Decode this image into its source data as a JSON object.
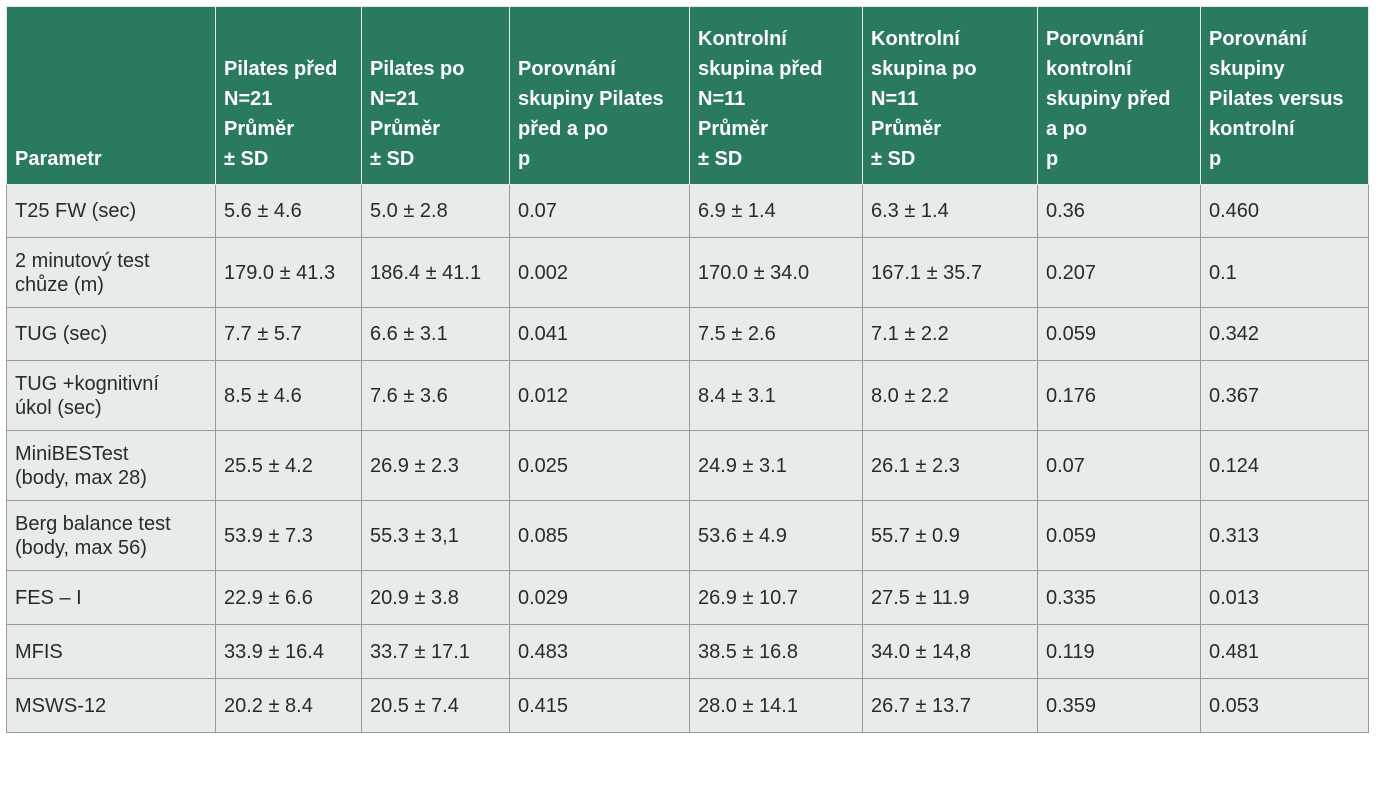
{
  "table": {
    "headers": [
      "Parametr",
      "Pilates před\nN=21\nPrůměr\n± SD",
      "Pilates po\nN=21\nPrůměr\n± SD",
      "Porovnání\nskupiny Pilates\npřed a po\np",
      "Kontrolní\nskupina před\nN=11\nPrůměr\n± SD",
      "Kontrolní\nskupina po\nN=11\nPrůměr\n± SD",
      "Porovnání\nkontrolní\nskupiny před\na po\np",
      "Porovnání\nskupiny\nPilates versus\nkontrolní\np"
    ],
    "rows": [
      [
        "T25 FW (sec)",
        "5.6 ± 4.6",
        "5.0 ± 2.8",
        "0.07",
        "6.9 ± 1.4",
        "6.3 ± 1.4",
        "0.36",
        "0.460"
      ],
      [
        "2 minutový test\nchůze (m)",
        "179.0 ± 41.3",
        "186.4 ± 41.1",
        "0.002",
        "170.0 ± 34.0",
        "167.1 ± 35.7",
        "0.207",
        "0.1"
      ],
      [
        "TUG (sec)",
        "7.7 ± 5.7",
        "6.6 ± 3.1",
        "0.041",
        "7.5 ± 2.6",
        "7.1 ± 2.2",
        "0.059",
        "0.342"
      ],
      [
        "TUG +kognitivní\núkol (sec)",
        "8.5 ± 4.6",
        "7.6 ± 3.6",
        "0.012",
        "8.4 ± 3.1",
        "8.0 ± 2.2",
        "0.176",
        "0.367"
      ],
      [
        "MiniBESTest\n(body, max 28)",
        "25.5 ± 4.2",
        "26.9 ± 2.3",
        "0.025",
        "24.9 ± 3.1",
        "26.1 ± 2.3",
        "0.07",
        "0.124"
      ],
      [
        "Berg balance test\n(body, max 56)",
        "53.9 ± 7.3",
        "55.3 ± 3,1",
        "0.085",
        "53.6 ± 4.9",
        "55.7 ± 0.9",
        "0.059",
        "0.313"
      ],
      [
        "FES – I",
        "22.9 ± 6.6",
        "20.9 ± 3.8",
        "0.029",
        "26.9 ± 10.7",
        "27.5 ± 11.9",
        "0.335",
        "0.013"
      ],
      [
        "MFIS",
        "33.9 ± 16.4",
        "33.7 ± 17.1",
        "0.483",
        "38.5 ± 16.8",
        "34.0 ± 14,8",
        "0.119",
        "0.481"
      ],
      [
        "MSWS-12",
        "20.2 ± 8.4",
        "20.5 ± 7.4",
        "0.415",
        "28.0 ± 14.1",
        "26.7 ± 13.7",
        "0.359",
        "0.053"
      ]
    ]
  },
  "colors": {
    "header_bg": "#2a7a5f",
    "header_text": "#ffffff",
    "cell_bg": "#e8ece8",
    "border": "#9a9a9a"
  }
}
